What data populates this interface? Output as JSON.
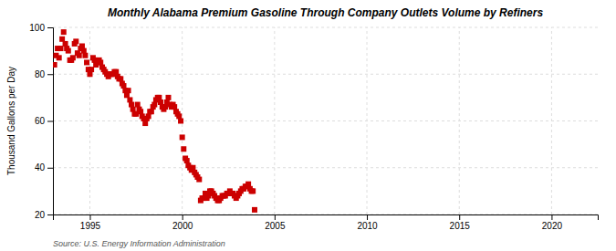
{
  "chart_data": {
    "type": "scatter",
    "title": "Monthly Alabama Premium Gasoline Through Company Outlets Volume by Refiners",
    "y_label": "Thousand Gallons per Day",
    "annotations": [
      "Source: U.S. Energy Information Administration"
    ],
    "color": "#cc0000",
    "marker": "square",
    "grid": true,
    "xlim": [
      1993.0,
      2022.5
    ],
    "ylim": [
      20,
      100
    ],
    "xticks": [
      1995,
      2000,
      2005,
      2010,
      2015,
      2020
    ],
    "yticks": [
      20,
      40,
      60,
      80,
      100
    ],
    "x": [
      1993.08,
      1993.17,
      1993.25,
      1993.33,
      1993.42,
      1993.5,
      1993.58,
      1993.67,
      1993.75,
      1993.83,
      1993.92,
      1994.0,
      1994.08,
      1994.17,
      1994.25,
      1994.33,
      1994.42,
      1994.5,
      1994.58,
      1994.67,
      1994.75,
      1994.83,
      1994.92,
      1995.0,
      1995.08,
      1995.17,
      1995.25,
      1995.33,
      1995.42,
      1995.5,
      1995.58,
      1995.67,
      1995.75,
      1995.83,
      1995.92,
      1996.0,
      1996.08,
      1996.17,
      1996.25,
      1996.33,
      1996.42,
      1996.5,
      1996.58,
      1996.67,
      1996.75,
      1996.83,
      1996.92,
      1997.0,
      1997.08,
      1997.17,
      1997.25,
      1997.33,
      1997.42,
      1997.5,
      1997.58,
      1997.67,
      1997.75,
      1997.83,
      1997.92,
      1998.0,
      1998.08,
      1998.17,
      1998.25,
      1998.33,
      1998.42,
      1998.5,
      1998.58,
      1998.67,
      1998.75,
      1998.83,
      1998.92,
      1999.0,
      1999.08,
      1999.17,
      1999.25,
      1999.33,
      1999.42,
      1999.5,
      1999.58,
      1999.67,
      1999.75,
      1999.83,
      1999.92,
      2000.0,
      2000.08,
      2000.17,
      2000.25,
      2000.33,
      2000.42,
      2000.5,
      2000.58,
      2000.67,
      2000.75,
      2000.83,
      2000.92,
      2001.0,
      2001.08,
      2001.17,
      2001.25,
      2001.33,
      2001.42,
      2001.5,
      2001.58,
      2001.67,
      2001.75,
      2001.83,
      2001.92,
      2002.0,
      2002.08,
      2002.17,
      2002.25,
      2002.33,
      2002.42,
      2002.5,
      2002.58,
      2002.67,
      2002.75,
      2002.83,
      2002.92,
      2003.0,
      2003.08,
      2003.17,
      2003.25,
      2003.33,
      2003.42,
      2003.5,
      2003.58,
      2003.67,
      2003.75,
      2003.83,
      2003.92
    ],
    "values": [
      84.0,
      88.0,
      91.0,
      87.0,
      91.0,
      95.0,
      98.0,
      93.0,
      91.0,
      90.0,
      86.0,
      86.0,
      87.0,
      93.0,
      94.0,
      89.0,
      88.0,
      91.0,
      92.0,
      90.0,
      88.0,
      85.0,
      82.0,
      80.0,
      82.0,
      87.0,
      86.0,
      84.0,
      85.0,
      86.0,
      85.0,
      83.0,
      82.0,
      81.0,
      80.0,
      79.0,
      80.0,
      80.0,
      80.0,
      81.0,
      81.0,
      79.0,
      78.0,
      78.0,
      76.0,
      75.0,
      73.0,
      71.0,
      73.0,
      69.0,
      67.0,
      65.0,
      63.0,
      63.0,
      67.0,
      65.0,
      64.0,
      62.0,
      61.0,
      59.0,
      61.0,
      62.0,
      64.0,
      64.0,
      66.0,
      67.0,
      69.0,
      70.0,
      70.0,
      68.0,
      66.0,
      65.0,
      66.0,
      68.0,
      70.0,
      67.0,
      66.0,
      67.0,
      66.0,
      64.0,
      63.0,
      62.0,
      60.0,
      53.0,
      48.0,
      44.0,
      43.0,
      41.0,
      40.0,
      39.0,
      40.0,
      38.0,
      37.0,
      36.0,
      35.0,
      26.0,
      27.0,
      27.0,
      29.0,
      27.0,
      28.0,
      30.0,
      30.0,
      29.0,
      28.0,
      27.0,
      26.0,
      26.0,
      27.0,
      28.0,
      28.0,
      28.0,
      29.0,
      29.0,
      30.0,
      29.0,
      29.0,
      28.0,
      27.0,
      28.0,
      29.0,
      30.0,
      31.0,
      31.0,
      32.0,
      32.0,
      33.0,
      31.0,
      30.0,
      30.0,
      22.0
    ]
  }
}
